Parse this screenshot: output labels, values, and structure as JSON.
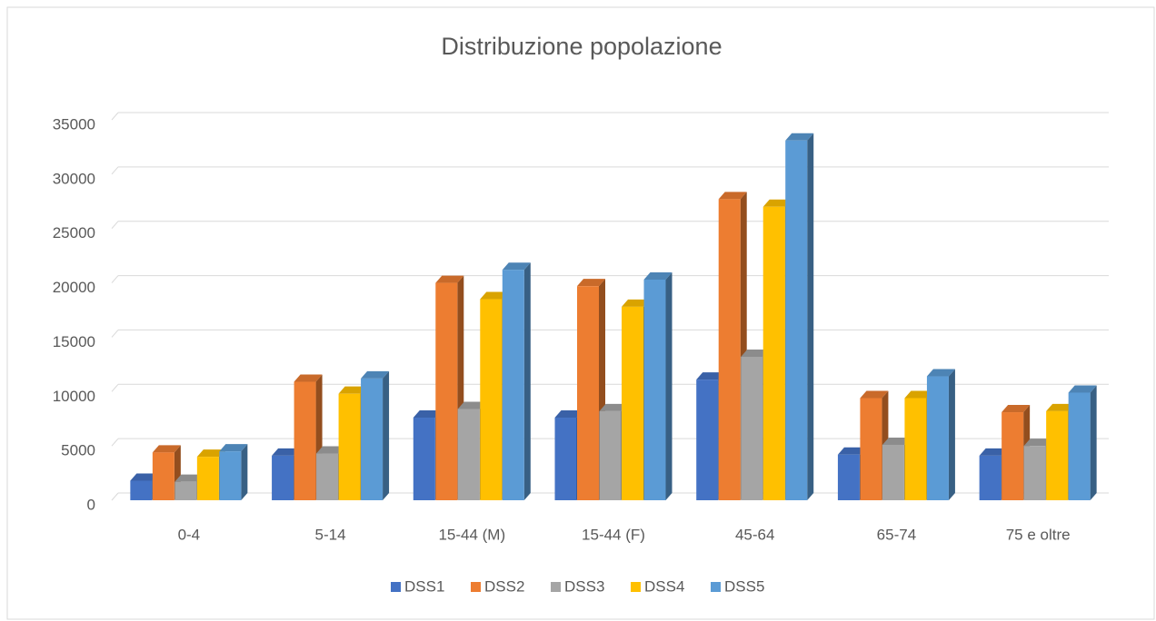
{
  "chart_data": {
    "type": "bar3d",
    "title": "Distribuzione popolazione",
    "categories": [
      "0-4",
      "5-14",
      "15-44 (M)",
      "15-44 (F)",
      "45-64",
      "65-74",
      "75 e oltre"
    ],
    "series": [
      {
        "name": "DSS1",
        "color": "#4472c4",
        "values": [
          1800,
          4100,
          7600,
          7600,
          11100,
          4200,
          4100
        ]
      },
      {
        "name": "DSS2",
        "color": "#ed7d31",
        "values": [
          4400,
          10900,
          20000,
          19700,
          27700,
          9400,
          8100
        ]
      },
      {
        "name": "DSS3",
        "color": "#a5a5a5",
        "values": [
          1700,
          4300,
          8400,
          8200,
          13200,
          5100,
          5000
        ]
      },
      {
        "name": "DSS4",
        "color": "#ffc000",
        "values": [
          4000,
          9800,
          18500,
          17800,
          27000,
          9400,
          8200
        ]
      },
      {
        "name": "DSS5",
        "color": "#5b9bd5",
        "values": [
          4500,
          11200,
          21200,
          20300,
          33100,
          11400,
          9900
        ]
      }
    ],
    "ylim": [
      0,
      35000
    ],
    "yticks": [
      0,
      5000,
      10000,
      15000,
      20000,
      25000,
      30000,
      35000
    ],
    "grid": true,
    "legend": "bottom"
  }
}
